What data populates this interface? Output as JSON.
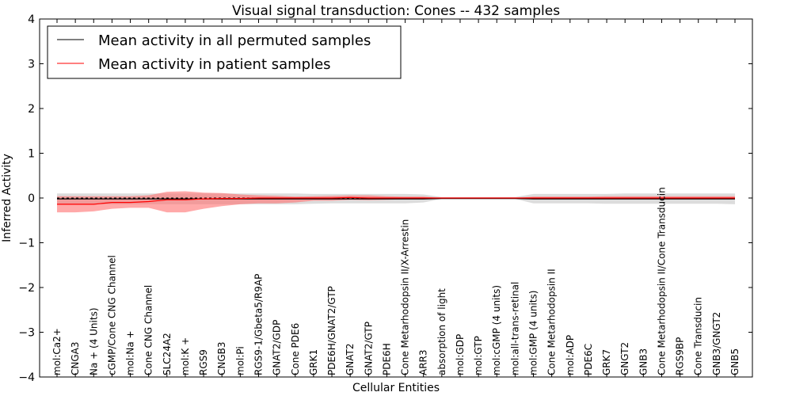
{
  "chart_data": {
    "type": "line",
    "title": "Visual signal transduction: Cones -- 432 samples",
    "xlabel": "Cellular Entities",
    "ylabel": "Inferred Activity",
    "ylim": [
      -4,
      4
    ],
    "yticks": [
      "4",
      "3",
      "2",
      "1",
      "0",
      "−1",
      "−2",
      "−3",
      "−4"
    ],
    "ytick_values": [
      4,
      3,
      2,
      1,
      0,
      -1,
      -2,
      -3,
      -4
    ],
    "legend_position": "top-left",
    "categories": [
      "mol:Ca2+",
      "CNGA3",
      "Na + (4 Units)",
      "cGMP/Cone CNG Channel",
      "mol:Na +",
      "Cone CNG Channel",
      "SLC24A2",
      "mol:K +",
      "RGS9",
      "CNGB3",
      "mol:Pi",
      "RGS9-1/Gbeta5/R9AP",
      "GNAT2/GDP",
      "Cone PDE6",
      "GRK1",
      "PDE6H/GNAT2/GTP",
      "GNAT2",
      "GNAT2/GTP",
      "PDE6H",
      "Cone Metarhodopsin II/X-Arrestin",
      "ARR3",
      "absorption of light",
      "mol:GDP",
      "mol:GTP",
      "mol:cGMP (4 units)",
      "mol:all-trans-retinal",
      "mol:GMP (4 units)",
      "Cone Metarhodopsin II",
      "mol:ADP",
      "PDE6C",
      "GRK7",
      "GNGT2",
      "GNB3",
      "Cone Metarhodopsin II/Cone Transducin",
      "RGS9BP",
      "Cone Transducin",
      "GNB3/GNGT2",
      "GNB5"
    ],
    "series": [
      {
        "name": "Mean activity in all permuted samples",
        "color": "#000000",
        "values": [
          -0.02,
          -0.02,
          -0.02,
          -0.02,
          -0.02,
          -0.02,
          -0.02,
          -0.02,
          -0.02,
          -0.02,
          -0.02,
          -0.02,
          -0.02,
          -0.02,
          -0.02,
          -0.02,
          -0.02,
          -0.02,
          -0.02,
          -0.02,
          -0.02,
          -0.01,
          -0.01,
          -0.01,
          -0.01,
          -0.01,
          -0.02,
          -0.02,
          -0.02,
          -0.02,
          -0.02,
          -0.02,
          -0.02,
          -0.02,
          -0.02,
          -0.02,
          -0.02,
          -0.02
        ],
        "band_low": [
          -0.14,
          -0.14,
          -0.14,
          -0.14,
          -0.14,
          -0.14,
          -0.14,
          -0.14,
          -0.14,
          -0.14,
          -0.14,
          -0.14,
          -0.14,
          -0.14,
          -0.13,
          -0.12,
          -0.12,
          -0.12,
          -0.12,
          -0.12,
          -0.1,
          -0.02,
          -0.02,
          -0.02,
          -0.02,
          -0.02,
          -0.12,
          -0.12,
          -0.12,
          -0.12,
          -0.13,
          -0.13,
          -0.13,
          -0.13,
          -0.13,
          -0.13,
          -0.13,
          -0.14
        ],
        "band_high": [
          0.1,
          0.1,
          0.1,
          0.1,
          0.1,
          0.1,
          0.1,
          0.1,
          0.1,
          0.1,
          0.1,
          0.1,
          0.1,
          0.1,
          0.09,
          0.09,
          0.09,
          0.09,
          0.09,
          0.09,
          0.08,
          0.02,
          0.02,
          0.02,
          0.02,
          0.02,
          0.09,
          0.09,
          0.09,
          0.09,
          0.09,
          0.1,
          0.1,
          0.1,
          0.1,
          0.1,
          0.1,
          0.1
        ]
      },
      {
        "name": "Mean activity in patient samples",
        "color": "#ff0000",
        "band_color": "#ff6f6f",
        "values": [
          -0.14,
          -0.14,
          -0.14,
          -0.1,
          -0.1,
          -0.08,
          -0.04,
          -0.04,
          -0.02,
          -0.01,
          -0.01,
          0.0,
          0.0,
          0.0,
          0.0,
          0.0,
          0.01,
          0.0,
          0.0,
          0.0,
          0.0,
          0.0,
          0.0,
          0.0,
          0.0,
          0.0,
          0.0,
          0.0,
          0.0,
          0.0,
          0.0,
          0.0,
          0.0,
          0.0,
          0.0,
          0.0,
          0.0,
          0.0
        ],
        "band_low": [
          -0.32,
          -0.32,
          -0.3,
          -0.24,
          -0.22,
          -0.22,
          -0.32,
          -0.32,
          -0.24,
          -0.18,
          -0.14,
          -0.12,
          -0.12,
          -0.1,
          -0.06,
          -0.06,
          -0.04,
          -0.05,
          -0.04,
          -0.03,
          -0.03,
          0.0,
          0.0,
          0.0,
          0.0,
          0.0,
          -0.03,
          -0.03,
          -0.03,
          -0.03,
          -0.03,
          -0.03,
          -0.03,
          -0.03,
          -0.03,
          -0.03,
          -0.03,
          -0.03
        ],
        "band_high": [
          0.04,
          0.04,
          0.04,
          0.04,
          0.04,
          0.06,
          0.14,
          0.15,
          0.12,
          0.11,
          0.08,
          0.06,
          0.05,
          0.03,
          0.04,
          0.05,
          0.06,
          0.06,
          0.04,
          0.03,
          0.03,
          0.0,
          0.0,
          0.0,
          0.0,
          0.0,
          0.03,
          0.03,
          0.03,
          0.03,
          0.04,
          0.04,
          0.04,
          0.04,
          0.04,
          0.04,
          0.04,
          0.04
        ]
      }
    ],
    "reference_line": 0
  }
}
